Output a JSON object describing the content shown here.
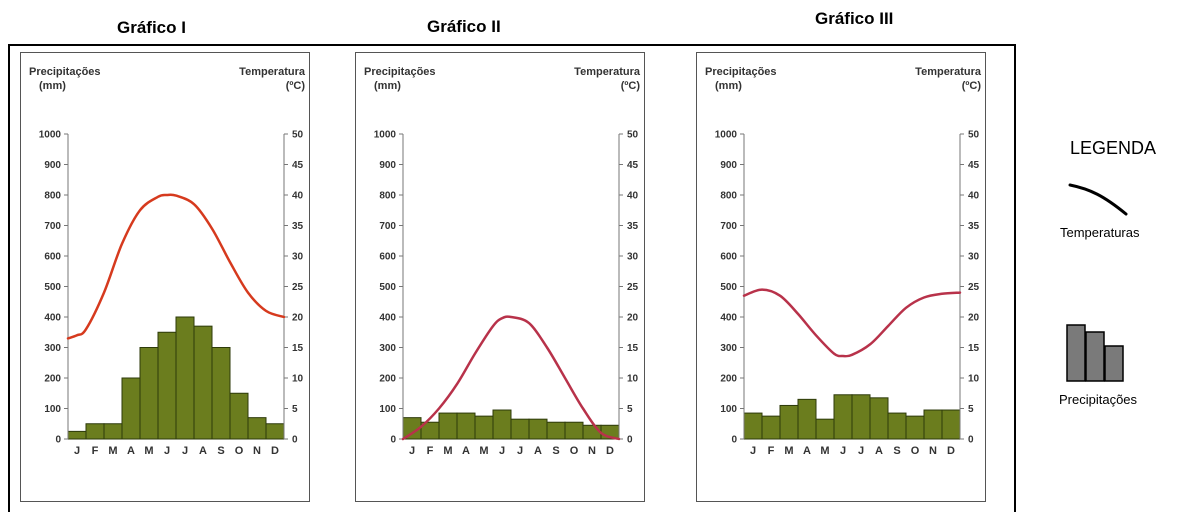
{
  "titles": [
    "Gráfico I",
    "Gráfico II",
    "Gráfico III"
  ],
  "legend": {
    "title": "LEGENDA",
    "temp_label": "Temperaturas",
    "precip_label": "Precipitações"
  },
  "colors": {
    "bar_fill": "#6b7d1e",
    "bar_stroke": "#2d3a0a",
    "temp_line_1": "#d63a1e",
    "temp_line_2_3": "#b8324a",
    "legend_bar": "#7a7a7a"
  },
  "chart_data": [
    {
      "type": "bar",
      "title": "Gráfico I",
      "ylabel": "Precipitações",
      "ylabel_unit": "(mm)",
      "y2label": "Temperatura",
      "y2label_unit": "(ºC)",
      "categories": [
        "J",
        "F",
        "M",
        "A",
        "M",
        "J",
        "J",
        "A",
        "S",
        "O",
        "N",
        "D"
      ],
      "ylim": [
        0,
        1000
      ],
      "yticks": [
        0,
        100,
        200,
        300,
        400,
        500,
        600,
        700,
        800,
        900,
        1000
      ],
      "y2lim": [
        0,
        50
      ],
      "y2ticks": [
        0,
        5,
        10,
        15,
        20,
        25,
        30,
        35,
        40,
        45,
        50
      ],
      "precipitation": [
        25,
        50,
        50,
        200,
        300,
        350,
        400,
        370,
        300,
        150,
        70,
        50
      ],
      "temperature_x": [
        0,
        0.5,
        1,
        2,
        3,
        4,
        5,
        5.5,
        6,
        7,
        8,
        9,
        10,
        11,
        12
      ],
      "temperature": [
        16.5,
        17,
        18,
        24,
        32,
        37.5,
        39.7,
        40,
        39.9,
        38.5,
        34.5,
        29,
        24,
        21,
        20
      ]
    },
    {
      "type": "bar",
      "title": "Gráfico II",
      "ylabel": "Precipitações",
      "ylabel_unit": "(mm)",
      "y2label": "Temperatura",
      "y2label_unit": "(ºC)",
      "categories": [
        "J",
        "F",
        "M",
        "A",
        "M",
        "J",
        "J",
        "A",
        "S",
        "O",
        "N",
        "D"
      ],
      "ylim": [
        0,
        1000
      ],
      "yticks": [
        0,
        100,
        200,
        300,
        400,
        500,
        600,
        700,
        800,
        900,
        1000
      ],
      "y2lim": [
        0,
        50
      ],
      "y2ticks": [
        0,
        5,
        10,
        15,
        20,
        25,
        30,
        35,
        40,
        45,
        50
      ],
      "precipitation": [
        70,
        55,
        85,
        85,
        75,
        95,
        65,
        65,
        55,
        55,
        45,
        45
      ],
      "temperature_x": [
        0,
        1,
        2,
        3,
        4,
        5,
        5.5,
        6,
        7,
        8,
        9,
        10,
        11,
        12
      ],
      "temperature": [
        0,
        2,
        5,
        9,
        14,
        18.5,
        19.8,
        20,
        19,
        15,
        10,
        5,
        1,
        0
      ]
    },
    {
      "type": "bar",
      "title": "Gráfico III",
      "ylabel": "Precipitações",
      "ylabel_unit": "(mm)",
      "y2label": "Temperatura",
      "y2label_unit": "(ºC)",
      "categories": [
        "J",
        "F",
        "M",
        "A",
        "M",
        "J",
        "J",
        "A",
        "S",
        "O",
        "N",
        "D"
      ],
      "ylim": [
        0,
        1000
      ],
      "yticks": [
        0,
        100,
        200,
        300,
        400,
        500,
        600,
        700,
        800,
        900,
        1000
      ],
      "y2lim": [
        0,
        50
      ],
      "y2ticks": [
        0,
        5,
        10,
        15,
        20,
        25,
        30,
        35,
        40,
        45,
        50
      ],
      "precipitation": [
        85,
        75,
        110,
        130,
        65,
        145,
        145,
        135,
        85,
        75,
        95,
        95
      ],
      "temperature_x": [
        0,
        1,
        2,
        3,
        4,
        5,
        5.5,
        6,
        7,
        8,
        9,
        10,
        11,
        12
      ],
      "temperature": [
        23.5,
        24.5,
        23.5,
        20.5,
        17,
        14,
        13.6,
        13.8,
        15.5,
        18.5,
        21.5,
        23.2,
        23.8,
        24
      ]
    }
  ]
}
